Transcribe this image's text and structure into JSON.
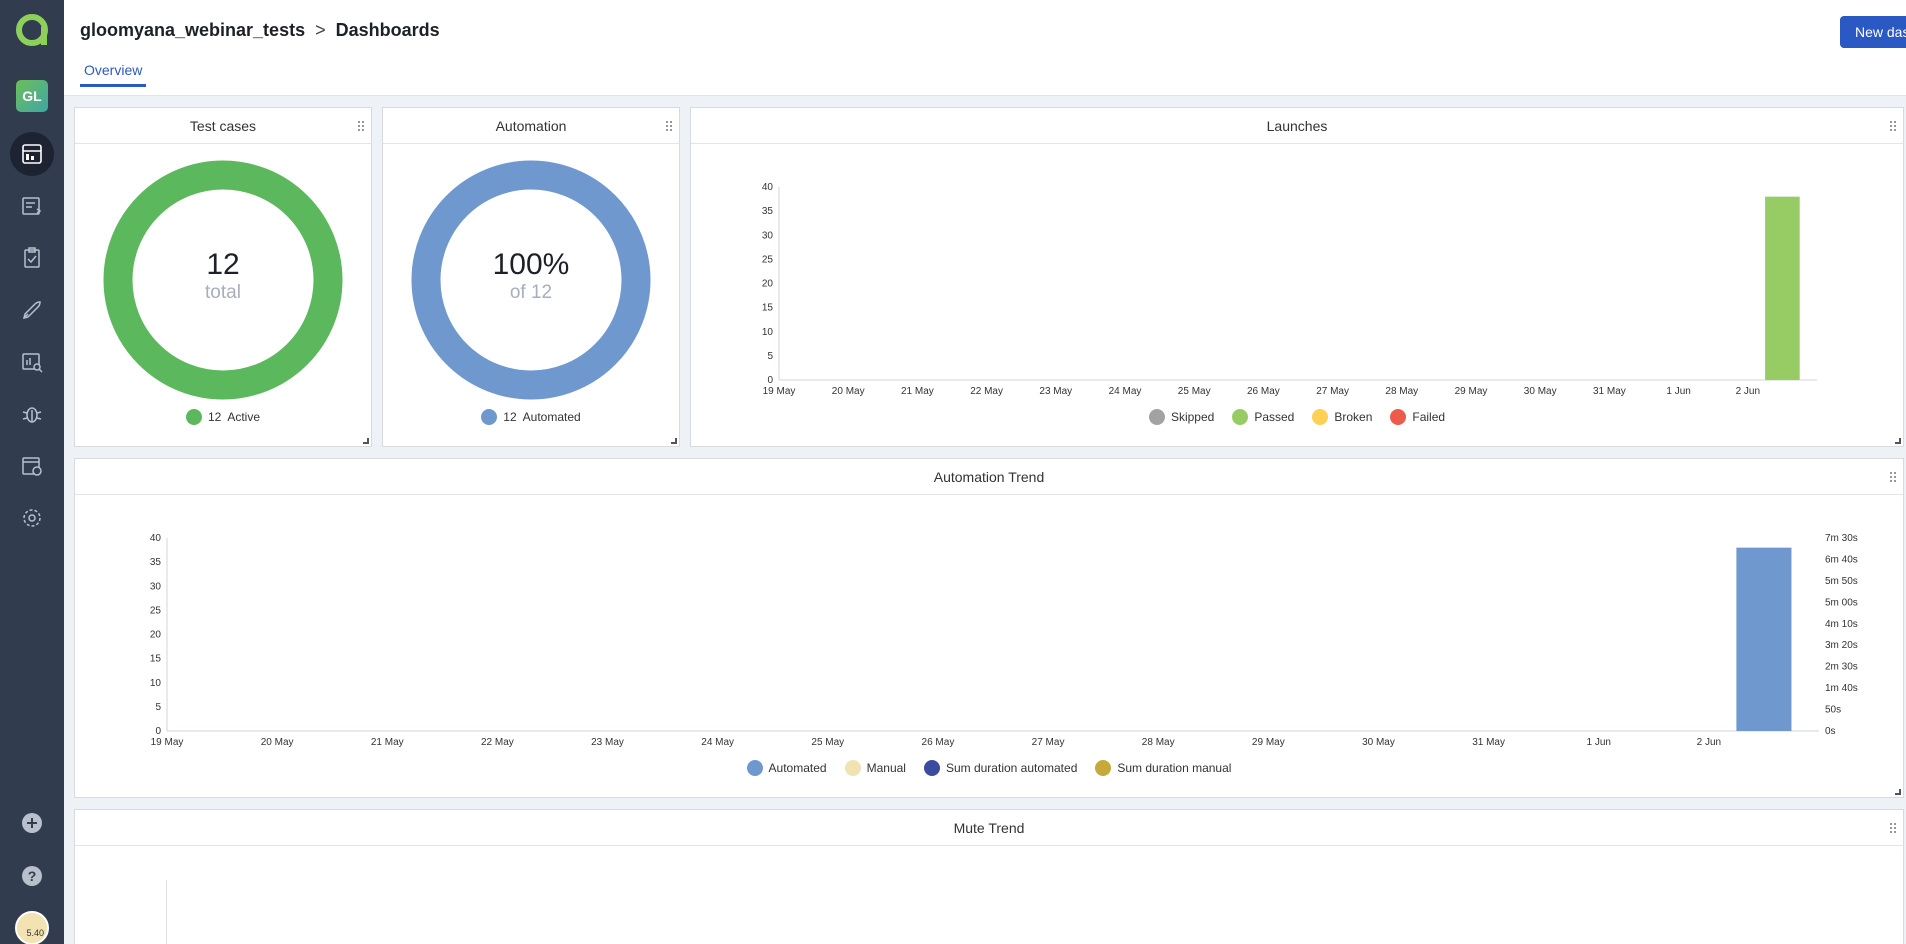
{
  "header": {
    "project": "gloomyana_webinar_tests",
    "separator": ">",
    "section": "Dashboards",
    "tab_overview": "Overview",
    "new_dashboard_label": "New dashboard"
  },
  "sidebar": {
    "project_avatar": "GL",
    "user_badge": "5.40",
    "items": [
      "dashboards-icon",
      "test-cases-icon",
      "test-plans-icon",
      "launches-icon",
      "analytics-icon",
      "defects-icon",
      "jobs-icon",
      "settings-icon"
    ]
  },
  "colors": {
    "active": "#5cb85c",
    "automated": "#6f98cf",
    "skipped": "#a2a2a2",
    "passed": "#97cc64",
    "broken": "#fed155",
    "failed": "#ee5b4b",
    "manual": "#f1e2b2",
    "sum_automated": "#3a4ba0",
    "sum_manual": "#c6a93b"
  },
  "widgets": {
    "test_cases": {
      "title": "Test cases",
      "number": "12",
      "sub": "total",
      "legend_count": "12",
      "legend_label": "Active"
    },
    "automation": {
      "title": "Automation",
      "number": "100%",
      "sub": "of 12",
      "legend_count": "12",
      "legend_label": "Automated"
    },
    "launches": {
      "title": "Launches",
      "legend": [
        "Skipped",
        "Passed",
        "Broken",
        "Failed"
      ]
    },
    "automation_trend": {
      "title": "Automation Trend",
      "legend": [
        "Automated",
        "Manual",
        "Sum duration automated",
        "Sum duration manual"
      ]
    },
    "mute_trend": {
      "title": "Mute Trend"
    }
  },
  "chart_data": [
    {
      "type": "bar",
      "title": "Launches",
      "categories": [
        "19 May",
        "20 May",
        "21 May",
        "22 May",
        "23 May",
        "24 May",
        "25 May",
        "26 May",
        "27 May",
        "28 May",
        "29 May",
        "30 May",
        "31 May",
        "1 Jun",
        "2 Jun"
      ],
      "ylim": [
        0,
        40
      ],
      "yticks": [
        0,
        5,
        10,
        15,
        20,
        25,
        30,
        35,
        40
      ],
      "series": [
        {
          "name": "Skipped",
          "values": [
            0,
            0,
            0,
            0,
            0,
            0,
            0,
            0,
            0,
            0,
            0,
            0,
            0,
            0,
            0
          ]
        },
        {
          "name": "Passed",
          "values": [
            0,
            0,
            0,
            0,
            0,
            0,
            0,
            0,
            0,
            0,
            0,
            0,
            0,
            0,
            38
          ]
        },
        {
          "name": "Broken",
          "values": [
            0,
            0,
            0,
            0,
            0,
            0,
            0,
            0,
            0,
            0,
            0,
            0,
            0,
            0,
            0
          ]
        },
        {
          "name": "Failed",
          "values": [
            0,
            0,
            0,
            0,
            0,
            0,
            0,
            0,
            0,
            0,
            0,
            0,
            0,
            0,
            0
          ]
        }
      ],
      "legend_position": "bottom"
    },
    {
      "type": "bar",
      "title": "Automation Trend",
      "categories": [
        "19 May",
        "20 May",
        "21 May",
        "22 May",
        "23 May",
        "24 May",
        "25 May",
        "26 May",
        "27 May",
        "28 May",
        "29 May",
        "30 May",
        "31 May",
        "1 Jun",
        "2 Jun"
      ],
      "ylim": [
        0,
        40
      ],
      "yticks": [
        0,
        5,
        10,
        15,
        20,
        25,
        30,
        35,
        40
      ],
      "y2ticks": [
        "0s",
        "50s",
        "1m 40s",
        "2m 30s",
        "3m 20s",
        "4m 10s",
        "5m 00s",
        "5m 50s",
        "6m 40s",
        "7m 30s"
      ],
      "series": [
        {
          "name": "Automated",
          "values": [
            0,
            0,
            0,
            0,
            0,
            0,
            0,
            0,
            0,
            0,
            0,
            0,
            0,
            0,
            38
          ]
        },
        {
          "name": "Manual",
          "values": [
            0,
            0,
            0,
            0,
            0,
            0,
            0,
            0,
            0,
            0,
            0,
            0,
            0,
            0,
            0
          ]
        },
        {
          "name": "Sum duration automated",
          "values": [
            0,
            0,
            0,
            0,
            0,
            0,
            0,
            0,
            0,
            0,
            0,
            0,
            0,
            0,
            0
          ]
        },
        {
          "name": "Sum duration manual",
          "values": [
            0,
            0,
            0,
            0,
            0,
            0,
            0,
            0,
            0,
            0,
            0,
            0,
            0,
            0,
            0
          ]
        }
      ],
      "legend_position": "bottom"
    }
  ]
}
